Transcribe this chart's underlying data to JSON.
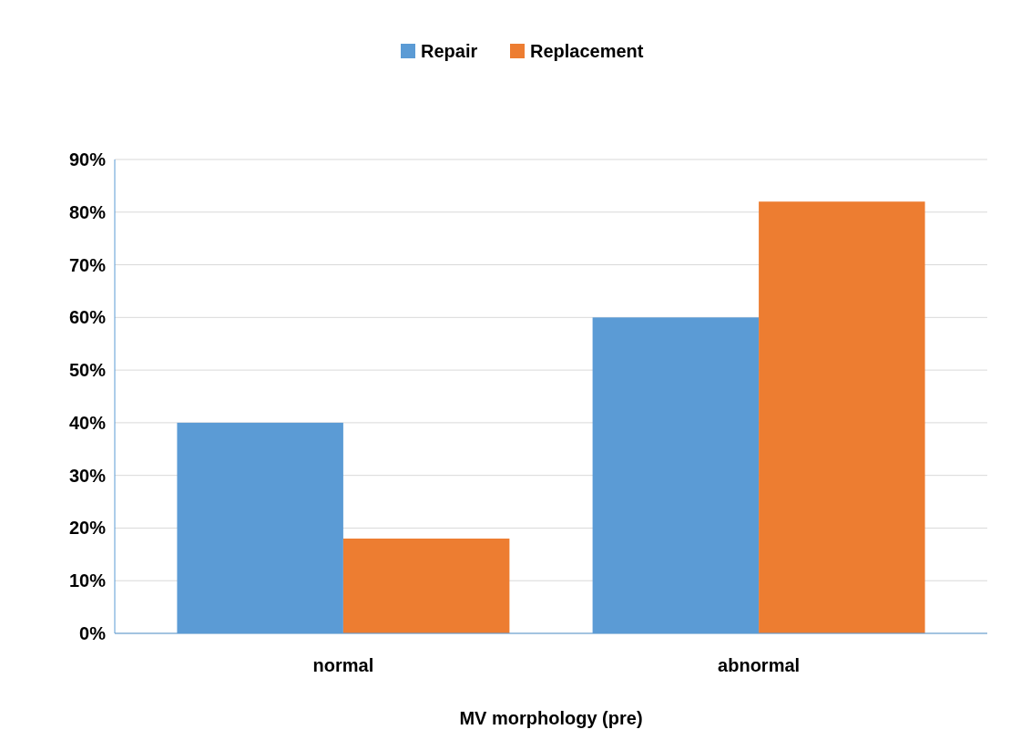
{
  "chart_data": {
    "type": "bar",
    "xlabel": "MV morphology (pre)",
    "categories": [
      "normal",
      "abnormal"
    ],
    "series": [
      {
        "name": "Repair",
        "color": "#5b9bd5",
        "values": [
          40,
          60
        ]
      },
      {
        "name": "Replacement",
        "color": "#ed7d31",
        "values": [
          18,
          82
        ]
      }
    ],
    "ylim": [
      0,
      90
    ],
    "yticks": [
      {
        "value": 0,
        "label": "0%"
      },
      {
        "value": 10,
        "label": "10%"
      },
      {
        "value": 20,
        "label": "20%"
      },
      {
        "value": 30,
        "label": "30%"
      },
      {
        "value": 40,
        "label": "40%"
      },
      {
        "value": 50,
        "label": "50%"
      },
      {
        "value": 60,
        "label": "60%"
      },
      {
        "value": 70,
        "label": "70%"
      },
      {
        "value": 80,
        "label": "80%"
      },
      {
        "value": 90,
        "label": "90%"
      }
    ],
    "grid": "y",
    "legend": "top"
  }
}
